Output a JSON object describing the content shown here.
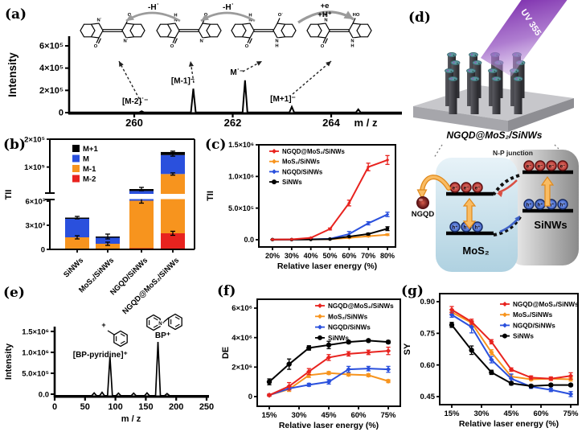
{
  "panel_labels": {
    "a": "(a)",
    "b": "(b)",
    "c": "(c)",
    "d": "(d)",
    "e": "(e)",
    "f": "(f)",
    "g": "(g)"
  },
  "colors": {
    "series_red": "#e8231f",
    "series_orange": "#f7941e",
    "series_blue": "#2a50dd",
    "series_black": "#000000",
    "beam_purple_dark": "#6a0fa0",
    "beam_purple_light": "#c4a1e0",
    "mos2_block_light": "#e6f2f8",
    "mos2_block_dark": "#abcfdf",
    "sinws_block_light": "#f2f2f2",
    "sinws_block_dark": "#8a8a8a",
    "electron_fill": "#b43434",
    "electron_stroke": "#5a0f0f",
    "hole_fill": "#3f63c8",
    "hole_stroke": "#16295f",
    "ngqd_fill": "#8c1a1f",
    "arrow_orange": "#f9bc63",
    "arrow_orange_edge": "#e0891c",
    "gray_arrow": "#9b9b9b"
  },
  "panel_d": {
    "beam_label": "UV 355 nm",
    "sample_label": "NGQD@MoS₂/SiNWs",
    "junction_label": "N-P junction",
    "mos2_label": "MoS₂",
    "sinws_label": "SiNWs",
    "ngqd_label": "NGQD",
    "electron_symbol": "e⁻",
    "hole_symbol": "h⁺"
  },
  "chart_data": [
    {
      "id": "a",
      "type": "mass_spectrum",
      "ylabel": "Intensity",
      "xlabel": "m / z",
      "xticks": [
        {
          "v": 260,
          "label": "260"
        },
        {
          "v": 262,
          "label": "262"
        },
        {
          "v": 264,
          "label": "264"
        }
      ],
      "yticks": [
        {
          "v": 0,
          "label": "0"
        },
        {
          "v": 200000,
          "label": "2×10⁵"
        },
        {
          "v": 400000,
          "label": "4×10⁵"
        },
        {
          "v": 600000,
          "label": "6×10⁵"
        }
      ],
      "peaks": [
        {
          "mz": 260.15,
          "intensity": 13000,
          "label": "[M-2]˙⁻"
        },
        {
          "mz": 261.2,
          "intensity": 215000,
          "label": "[M-1]⁻"
        },
        {
          "mz": 262.25,
          "intensity": 290000,
          "label": "M˙⁻"
        },
        {
          "mz": 263.2,
          "intensity": 52000,
          "label": "[M+1]⁻"
        },
        {
          "mz": 264.55,
          "intensity": 30000,
          "label": ""
        }
      ],
      "reaction_arrows": {
        "arrow1": "-H˙",
        "arrow2": "-H˙",
        "arrow3a": "+e",
        "arrow3b": "+H⁺"
      },
      "structures": [
        {
          "lt": "N˙",
          "lb": "O",
          "rt": "O",
          "rb": "N˙"
        },
        {
          "lt": "NH",
          "lb": "O",
          "rt": "O",
          "rb": "N˙"
        },
        {
          "lt": "NH",
          "lb": "O",
          "rt": "O˙",
          "rb": "NH"
        },
        {
          "lt": "NH",
          "lb": "O",
          "rt": "HO",
          "rb": "NH"
        }
      ]
    },
    {
      "id": "b",
      "type": "stacked_bar_broken",
      "ylabel": "TII",
      "categories": [
        "SiNWs",
        "MoS₂/SiNWs",
        "NGQD/SiNWs",
        "NGQD@MoS₂/SiNWs"
      ],
      "legend": [
        {
          "label": "M+1",
          "color": "series_black"
        },
        {
          "label": "M",
          "color": "series_blue"
        },
        {
          "label": "M-1",
          "color": "series_orange"
        },
        {
          "label": "M-2",
          "color": "series_red"
        }
      ],
      "stacks": [
        {
          "name": "M-2",
          "color": "series_red",
          "values": [
            0,
            0,
            150,
            2000
          ]
        },
        {
          "name": "M-1",
          "color": "series_orange",
          "values": [
            1500,
            700,
            5900,
            73000
          ]
        },
        {
          "name": "M",
          "color": "series_blue",
          "values": [
            2300,
            750,
            8000,
            68000
          ]
        },
        {
          "name": "M+1",
          "color": "series_black",
          "values": [
            150,
            150,
            7000,
            11000
          ]
        }
      ],
      "error_bars": [
        {
          "cat": 0,
          "v": 1500,
          "e": 200
        },
        {
          "cat": 0,
          "v": 3950,
          "e": 150
        },
        {
          "cat": 1,
          "v": 700,
          "e": 200
        },
        {
          "cat": 1,
          "v": 1600,
          "e": 300
        },
        {
          "cat": 2,
          "v": 6050,
          "e": 300
        },
        {
          "cat": 2,
          "v": 21050,
          "e": 6000
        },
        {
          "cat": 3,
          "v": 2000,
          "e": 250
        },
        {
          "cat": 3,
          "v": 75000,
          "e": 4000
        },
        {
          "cat": 3,
          "v": 143000,
          "e": 4000
        },
        {
          "cat": 3,
          "v": 154000,
          "e": 3000
        }
      ],
      "lower_axis": {
        "ticks": [
          {
            "v": 0,
            "label": "0"
          },
          {
            "v": 3000,
            "label": "3×10³"
          },
          {
            "v": 6000,
            "label": "6×10³"
          }
        ],
        "max": 6600
      },
      "upper_axis": {
        "ticks": [
          {
            "v": 100000,
            "label": "1×10⁵"
          },
          {
            "v": 200000,
            "label": "2×10⁵"
          }
        ],
        "max": 200000
      }
    },
    {
      "id": "c",
      "type": "line",
      "ylabel": "TII",
      "xlabel": "Relative laser energy (%)",
      "x": [
        20,
        30,
        40,
        50,
        60,
        70,
        80
      ],
      "xticks": [
        {
          "v": 20,
          "label": "20%"
        },
        {
          "v": 30,
          "label": "30%"
        },
        {
          "v": 40,
          "label": "40%"
        },
        {
          "v": 50,
          "label": "50%"
        },
        {
          "v": 60,
          "label": "60%"
        },
        {
          "v": 70,
          "label": "70%"
        },
        {
          "v": 80,
          "label": "80%"
        }
      ],
      "yticks": [
        {
          "v": 0,
          "label": "0.0"
        },
        {
          "v": 500000,
          "label": "5.0×10⁵"
        },
        {
          "v": 1000000,
          "label": "1.0×10⁶"
        },
        {
          "v": 1500000,
          "label": "1.5×10⁶"
        }
      ],
      "series": [
        {
          "name": "NGQD@MoS₂/SiNWs",
          "color": "series_red",
          "marker": "diamond",
          "values": [
            3000,
            6000,
            30000,
            170000,
            580000,
            1150000,
            1260000
          ],
          "errors": [
            2000,
            2000,
            5000,
            15000,
            45000,
            60000,
            70000
          ]
        },
        {
          "name": "MoS₂/SiNWs",
          "color": "series_orange",
          "marker": "diamond",
          "values": [
            1500,
            2500,
            4000,
            8000,
            30000,
            55000,
            80000
          ],
          "errors": [
            1000,
            1000,
            2000,
            3000,
            8000,
            10000,
            12000
          ]
        },
        {
          "name": "NGQD/SiNWs",
          "color": "series_blue",
          "marker": "diamond",
          "values": [
            2000,
            3000,
            6000,
            15000,
            90000,
            260000,
            400000
          ],
          "errors": [
            1000,
            1000,
            2000,
            5000,
            40000,
            25000,
            35000
          ]
        },
        {
          "name": "SiNWs",
          "color": "series_black",
          "marker": "circle",
          "values": [
            2000,
            3000,
            5000,
            10000,
            50000,
            90000,
            175000
          ],
          "errors": [
            1000,
            1000,
            2000,
            4000,
            10000,
            15000,
            30000
          ]
        }
      ]
    },
    {
      "id": "e",
      "type": "mass_spectrum",
      "ylabel": "Intensity",
      "xlabel": "m / z",
      "xticks": [
        {
          "v": 0,
          "label": "0"
        },
        {
          "v": 50,
          "label": "50"
        },
        {
          "v": 100,
          "label": "100"
        },
        {
          "v": 150,
          "label": "150"
        },
        {
          "v": 200,
          "label": "200"
        },
        {
          "v": 250,
          "label": "250"
        }
      ],
      "yticks": [
        {
          "v": 0,
          "label": "0.0"
        },
        {
          "v": 500000,
          "label": "5.0×10⁵"
        },
        {
          "v": 1000000,
          "label": "1.0×10⁶"
        },
        {
          "v": 1500000,
          "label": "1.5×10⁶"
        }
      ],
      "peaks": [
        {
          "mz": 65,
          "intensity": 30000,
          "label": ""
        },
        {
          "mz": 78,
          "intensity": 45000,
          "label": ""
        },
        {
          "mz": 91,
          "intensity": 900000,
          "label": "[BP-pyridine]⁺"
        },
        {
          "mz": 105,
          "intensity": 25000,
          "label": ""
        },
        {
          "mz": 130,
          "intensity": 25000,
          "label": ""
        },
        {
          "mz": 152,
          "intensity": 30000,
          "label": ""
        },
        {
          "mz": 170,
          "intensity": 1250000,
          "label": "BP⁺"
        },
        {
          "mz": 185,
          "intensity": 15000,
          "label": ""
        }
      ]
    },
    {
      "id": "f",
      "type": "line",
      "ylabel": "DE",
      "xlabel": "Relative laser energy (%)",
      "x": [
        15,
        25,
        35,
        45,
        55,
        65,
        75
      ],
      "xticks": [
        {
          "v": 15,
          "label": "15%"
        },
        {
          "v": 30,
          "label": "30%"
        },
        {
          "v": 45,
          "label": "45%"
        },
        {
          "v": 60,
          "label": "60%"
        },
        {
          "v": 75,
          "label": "75%"
        }
      ],
      "yticks": [
        {
          "v": 0,
          "label": "0"
        },
        {
          "v": 2000000,
          "label": "2×10⁶"
        },
        {
          "v": 4000000,
          "label": "4×10⁶"
        },
        {
          "v": 6000000,
          "label": "6×10⁶"
        }
      ],
      "series": [
        {
          "name": "NGQD@MoS₂/SiNWs",
          "color": "series_red",
          "marker": "diamond",
          "values": [
            100000,
            700000,
            1700000,
            2650000,
            2900000,
            3000000,
            3100000
          ],
          "errors": [
            80000,
            250000,
            200000,
            200000,
            150000,
            150000,
            250000
          ]
        },
        {
          "name": "MoS₂/SiNWs",
          "color": "series_orange",
          "marker": "diamond",
          "values": [
            100000,
            500000,
            1450000,
            1600000,
            1500000,
            1450000,
            1050000
          ],
          "errors": [
            50000,
            150000,
            150000,
            100000,
            100000,
            100000,
            100000
          ]
        },
        {
          "name": "NGQD/SiNWs",
          "color": "series_blue",
          "marker": "diamond",
          "values": [
            100000,
            550000,
            800000,
            1000000,
            1850000,
            1900000,
            1850000
          ],
          "errors": [
            50000,
            100000,
            100000,
            150000,
            200000,
            150000,
            200000
          ]
        },
        {
          "name": "SiNWs",
          "color": "series_black",
          "marker": "circle",
          "values": [
            1000000,
            2200000,
            3300000,
            3500000,
            3700000,
            3800000,
            3700000
          ],
          "errors": [
            200000,
            350000,
            150000,
            250000,
            100000,
            80000,
            100000
          ]
        }
      ]
    },
    {
      "id": "g",
      "type": "line",
      "ylabel": "SY",
      "xlabel": "Relative laser energy (%)",
      "x": [
        15,
        25,
        35,
        45,
        55,
        65,
        75
      ],
      "xticks": [
        {
          "v": 15,
          "label": "15%"
        },
        {
          "v": 30,
          "label": "30%"
        },
        {
          "v": 45,
          "label": "45%"
        },
        {
          "v": 60,
          "label": "60%"
        },
        {
          "v": 75,
          "label": "75%"
        }
      ],
      "yticks": [
        {
          "v": 0.45,
          "label": "0.45"
        },
        {
          "v": 0.6,
          "label": "0.60"
        },
        {
          "v": 0.75,
          "label": "0.75"
        },
        {
          "v": 0.9,
          "label": "0.90"
        }
      ],
      "series": [
        {
          "name": "NGQD@MoS₂/SiNWs",
          "color": "series_red",
          "marker": "diamond",
          "values": [
            0.862,
            0.805,
            0.71,
            0.578,
            0.54,
            0.535,
            0.548
          ],
          "errors": [
            0.015,
            0.012,
            0.01,
            0.008,
            0.008,
            0.008,
            0.015
          ]
        },
        {
          "name": "MoS₂/SiNWs",
          "color": "series_orange",
          "marker": "diamond",
          "values": [
            0.85,
            0.8,
            0.66,
            0.545,
            0.532,
            0.535,
            0.532
          ],
          "errors": [
            0.01,
            0.01,
            0.012,
            0.01,
            0.006,
            0.006,
            0.008
          ]
        },
        {
          "name": "NGQD/SiNWs",
          "color": "series_blue",
          "marker": "diamond",
          "values": [
            0.838,
            0.78,
            0.625,
            0.535,
            0.497,
            0.482,
            0.462
          ],
          "errors": [
            0.012,
            0.028,
            0.015,
            0.022,
            0.008,
            0.008,
            0.012
          ]
        },
        {
          "name": "SiNWs",
          "color": "series_black",
          "marker": "circle",
          "values": [
            0.79,
            0.67,
            0.565,
            0.513,
            0.5,
            0.505,
            0.505
          ],
          "errors": [
            0.012,
            0.02,
            0.01,
            0.008,
            0.006,
            0.006,
            0.006
          ]
        }
      ]
    }
  ]
}
